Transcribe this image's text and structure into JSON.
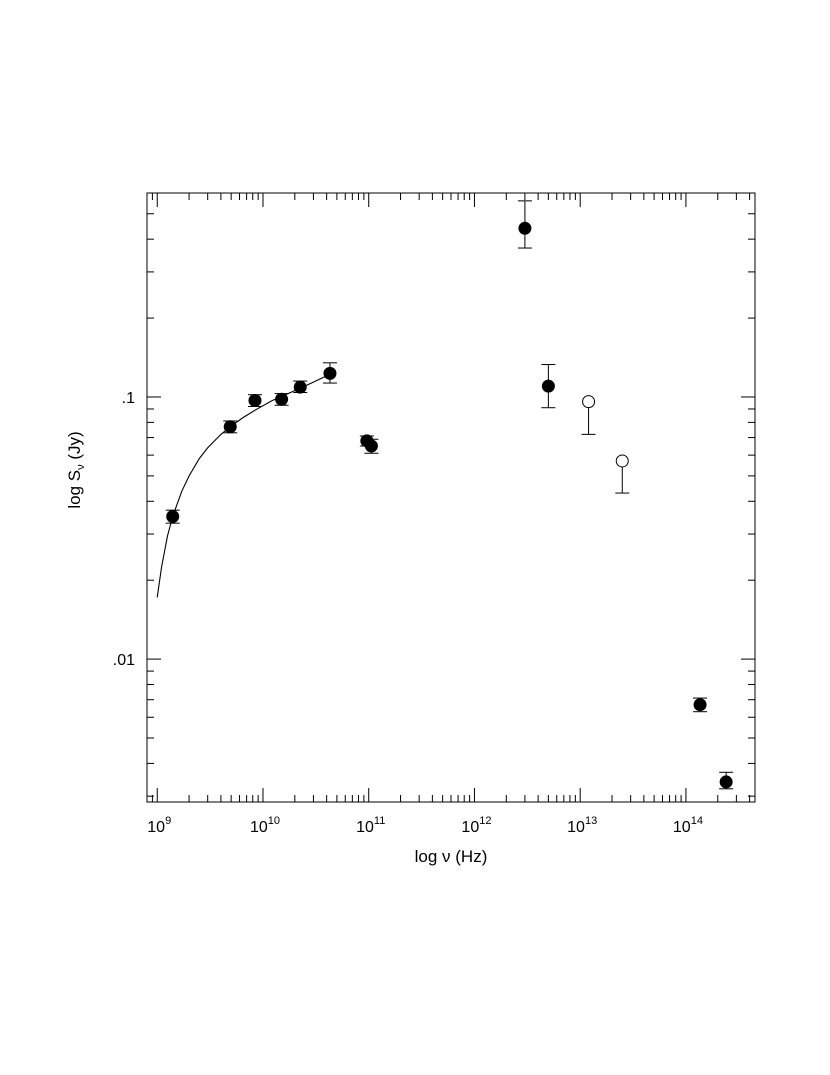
{
  "chart_data": {
    "type": "scatter",
    "xlabel": "log ν (Hz)",
    "ylabel": "log S",
    "ylabel_sub": "ν",
    "ylabel_unit": " (Jy)",
    "xscale": "log",
    "yscale": "log",
    "xlim": [
      800000000.0,
      450000000000000.0
    ],
    "ylim": [
      0.00285,
      0.6
    ],
    "grid": false,
    "x_tick_labels": [
      {
        "value": 1000000000.0,
        "base": "10",
        "exp": "9"
      },
      {
        "value": 10000000000.0,
        "base": "10",
        "exp": "10"
      },
      {
        "value": 100000000000.0,
        "base": "10",
        "exp": "11"
      },
      {
        "value": 1000000000000.0,
        "base": "10",
        "exp": "12"
      },
      {
        "value": 10000000000000.0,
        "base": "10",
        "exp": "13"
      },
      {
        "value": 100000000000000.0,
        "base": "10",
        "exp": "14"
      }
    ],
    "y_tick_labels": [
      {
        "value": 0.1,
        "label": ".1"
      },
      {
        "value": 0.01,
        "label": ".01"
      }
    ],
    "series": [
      {
        "marker": "filled-circle",
        "points": [
          {
            "x": 1400000000.0,
            "y": 0.035,
            "err_lo": 0.033,
            "err_hi": 0.037
          },
          {
            "x": 4900000000.0,
            "y": 0.077,
            "err_lo": 0.073,
            "err_hi": 0.081
          },
          {
            "x": 8400000000.0,
            "y": 0.097,
            "err_lo": 0.092,
            "err_hi": 0.102
          },
          {
            "x": 15000000000.0,
            "y": 0.098,
            "err_lo": 0.093,
            "err_hi": 0.103
          },
          {
            "x": 22500000000.0,
            "y": 0.109,
            "err_lo": 0.104,
            "err_hi": 0.115
          },
          {
            "x": 43000000000.0,
            "y": 0.123,
            "err_lo": 0.113,
            "err_hi": 0.135
          },
          {
            "x": 96000000000.0,
            "y": 0.068,
            "err_lo": 0.065,
            "err_hi": 0.071
          },
          {
            "x": 106000000000.0,
            "y": 0.065,
            "err_lo": 0.061,
            "err_hi": 0.069
          },
          {
            "x": 3000000000000.0,
            "y": 0.44,
            "err_lo": 0.37,
            "err_hi": 0.56
          },
          {
            "x": 5000000000000.0,
            "y": 0.11,
            "err_lo": 0.091,
            "err_hi": 0.133
          },
          {
            "x": 136000000000000.0,
            "y": 0.0067,
            "err_lo": 0.0063,
            "err_hi": 0.0071
          },
          {
            "x": 240000000000000.0,
            "y": 0.0034,
            "err_lo": 0.0032,
            "err_hi": 0.0037
          }
        ]
      },
      {
        "marker": "open-circle",
        "points": [
          {
            "x": 12000000000000.0,
            "y": 0.096,
            "err_lo": 0.072,
            "err_hi": 0.096
          },
          {
            "x": 25000000000000.0,
            "y": 0.057,
            "err_lo": 0.043,
            "err_hi": 0.057
          }
        ]
      }
    ],
    "fit_curve": {
      "points": [
        [
          1000000000.0,
          0.0172
        ],
        [
          1100000000.0,
          0.0225
        ],
        [
          1250000000.0,
          0.0295
        ],
        [
          1400000000.0,
          0.035
        ],
        [
          1700000000.0,
          0.0435
        ],
        [
          2000000000.0,
          0.05
        ],
        [
          2500000000.0,
          0.0582
        ],
        [
          3000000000.0,
          0.064
        ],
        [
          4000000000.0,
          0.072
        ],
        [
          5000000000.0,
          0.0775
        ],
        [
          6500000000.0,
          0.0835
        ],
        [
          8400000000.0,
          0.089
        ],
        [
          12000000000.0,
          0.0965
        ],
        [
          15000000000.0,
          0.1005
        ],
        [
          22500000000.0,
          0.108
        ],
        [
          30000000000.0,
          0.114
        ],
        [
          43000000000.0,
          0.122
        ]
      ]
    }
  }
}
